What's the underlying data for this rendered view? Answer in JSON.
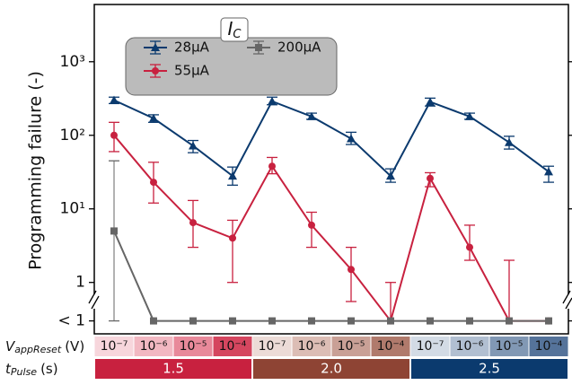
{
  "chart_data": {
    "type": "line",
    "y_label": "Programming failure (-)",
    "log_y": true,
    "ylim": [
      0.2,
      6000
    ],
    "yticks": [
      {
        "value": 0.3,
        "label": "< 1"
      },
      1,
      {
        "value": 10,
        "label": "10¹"
      },
      {
        "value": 100,
        "label": "10²"
      },
      {
        "value": 1000,
        "label": "10³"
      }
    ],
    "categories": [
      "10⁻⁷",
      "10⁻⁶",
      "10⁻⁵",
      "10⁻⁴",
      "10⁻⁷",
      "10⁻⁶",
      "10⁻⁵",
      "10⁻⁴",
      "10⁻⁷",
      "10⁻⁶",
      "10⁻⁵",
      "10⁻⁴"
    ],
    "category_colors": [
      "#f7d6dc",
      "#f2b8c2",
      "#e8899a",
      "#d5465f",
      "#ecdbd7",
      "#dcbdb5",
      "#c9a096",
      "#b07a6c",
      "#d3dbe5",
      "#b1bfd1",
      "#8198b4",
      "#55739a"
    ],
    "row_labels": [
      {
        "symbol": "V",
        "subscript": "appReset",
        "unit": "(V)"
      },
      {
        "symbol": "t",
        "subscript": "Pulse",
        "unit": "(s)"
      }
    ],
    "pulse_groups": [
      {
        "label": "1.5",
        "color": "#c8213f"
      },
      {
        "label": "2.0",
        "color": "#8e4434"
      },
      {
        "label": "2.5",
        "color": "#0b3a6e"
      }
    ],
    "legend_title": {
      "symbol": "I",
      "subscript": "C"
    },
    "series": [
      {
        "name": "28µA",
        "color": "#0b3a6e",
        "marker": "triangle",
        "values": [
          300,
          170,
          72,
          28,
          290,
          180,
          90,
          28,
          285,
          180,
          80,
          32
        ],
        "lower": [
          270,
          150,
          58,
          21,
          260,
          165,
          75,
          23,
          250,
          165,
          65,
          23
        ],
        "upper": [
          330,
          190,
          85,
          37,
          330,
          200,
          110,
          35,
          320,
          200,
          97,
          38
        ]
      },
      {
        "name": "55µA",
        "color": "#c8213f",
        "marker": "circle",
        "values": [
          100,
          23,
          6.5,
          4,
          38,
          6,
          1.5,
          0.3,
          26,
          3,
          0.3,
          0.3
        ],
        "lower": [
          60,
          12,
          3,
          1,
          30,
          3,
          0.55,
          0.3,
          20,
          2,
          0.3,
          null
        ],
        "upper": [
          150,
          43,
          13,
          7,
          50,
          9,
          3,
          1,
          31,
          6,
          2,
          null
        ]
      },
      {
        "name": "200µA",
        "color": "#666666",
        "marker": "square",
        "values": [
          5,
          0.3,
          0.3,
          0.3,
          0.3,
          0.3,
          0.3,
          0.3,
          0.3,
          0.3,
          0.3,
          0.3
        ],
        "lower": [
          0.3,
          null,
          null,
          null,
          null,
          null,
          null,
          null,
          null,
          null,
          null,
          null
        ],
        "upper": [
          45,
          null,
          null,
          null,
          null,
          null,
          null,
          null,
          null,
          null,
          null,
          null
        ]
      }
    ]
  }
}
